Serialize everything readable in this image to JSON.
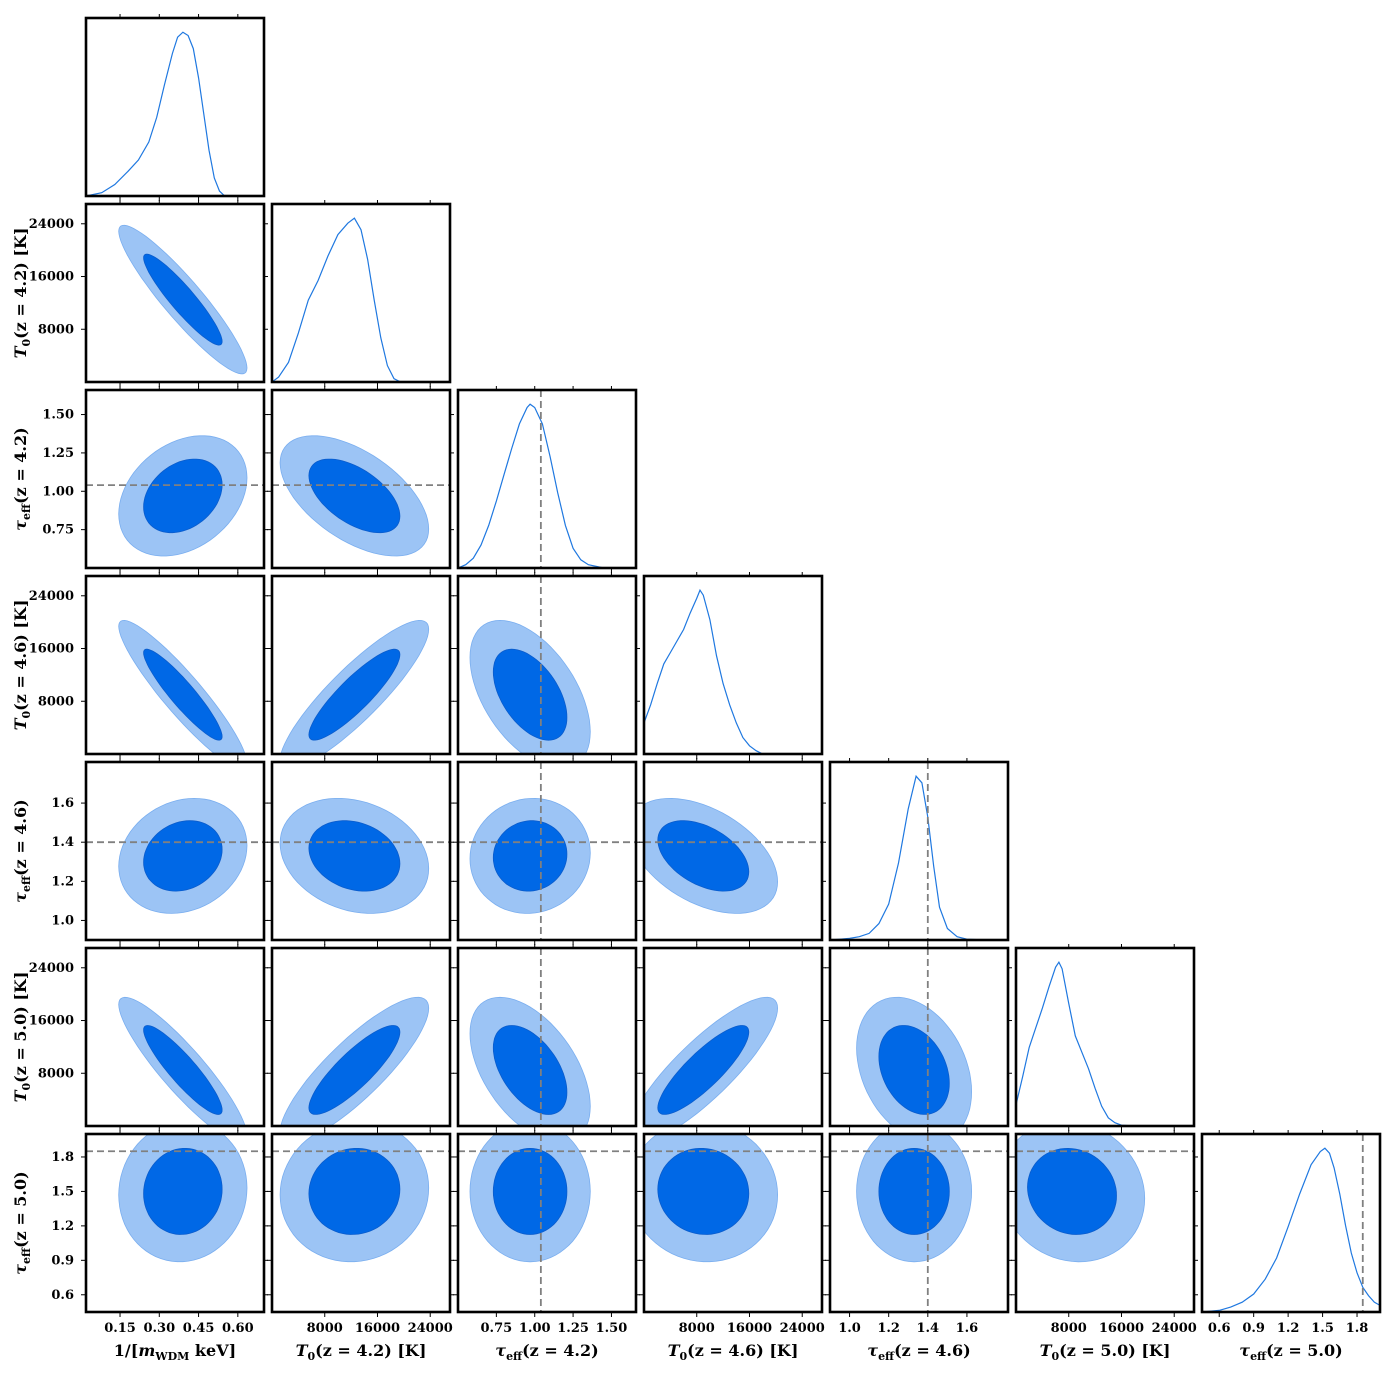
{
  "colors": {
    "inner": "#0068e6",
    "outer": "#9cc4f5",
    "line": "#1f78e0",
    "reference": "#808080"
  },
  "chart_data": {
    "type": "corner",
    "grid": false,
    "parameters": [
      {
        "label": "1/[m_WDM keV]",
        "label_parts": {
          "pre": "1/[",
          "sym": "m",
          "sub": "WDM",
          "post": " keV]"
        },
        "range": [
          0.02,
          0.7
        ],
        "ticks": [
          0.15,
          0.3,
          0.45,
          0.6
        ],
        "tick_labels": [
          "0.15",
          "0.30",
          "0.45",
          "0.60"
        ],
        "mean": 0.39,
        "sd": 0.1,
        "true_value": null,
        "pdf": [
          [
            0.02,
            0
          ],
          [
            0.08,
            0.02
          ],
          [
            0.13,
            0.07
          ],
          [
            0.18,
            0.15
          ],
          [
            0.22,
            0.22
          ],
          [
            0.26,
            0.33
          ],
          [
            0.29,
            0.48
          ],
          [
            0.32,
            0.68
          ],
          [
            0.35,
            0.87
          ],
          [
            0.37,
            0.97
          ],
          [
            0.39,
            1.0
          ],
          [
            0.41,
            0.98
          ],
          [
            0.43,
            0.9
          ],
          [
            0.45,
            0.72
          ],
          [
            0.47,
            0.5
          ],
          [
            0.49,
            0.28
          ],
          [
            0.51,
            0.11
          ],
          [
            0.53,
            0.03
          ],
          [
            0.55,
            0.0
          ],
          [
            0.7,
            0
          ]
        ]
      },
      {
        "label": "T0(z = 4.2) [K]",
        "label_parts": {
          "pre": "",
          "sym": "T",
          "sub": "0",
          "post": "(z = 4.2) [K]"
        },
        "range": [
          0,
          27000
        ],
        "ticks": [
          8000,
          16000,
          24000
        ],
        "tick_labels": [
          "8000",
          "16000",
          "24000"
        ],
        "mean": 12500,
        "sd": 4600,
        "true_value": null,
        "pdf": [
          [
            0,
            0
          ],
          [
            1000,
            0.03
          ],
          [
            2500,
            0.12
          ],
          [
            4000,
            0.3
          ],
          [
            5500,
            0.5
          ],
          [
            7000,
            0.62
          ],
          [
            8500,
            0.77
          ],
          [
            10000,
            0.9
          ],
          [
            11500,
            0.97
          ],
          [
            12500,
            1.0
          ],
          [
            13500,
            0.93
          ],
          [
            14500,
            0.75
          ],
          [
            15500,
            0.5
          ],
          [
            16500,
            0.27
          ],
          [
            17500,
            0.1
          ],
          [
            18500,
            0.02
          ],
          [
            19500,
            0
          ],
          [
            27000,
            0
          ]
        ]
      },
      {
        "label": "τ_eff(z = 4.2)",
        "label_parts": {
          "pre": "",
          "sym": "τ",
          "sub": "eff",
          "post": "(z = 4.2)"
        },
        "range": [
          0.5,
          1.66
        ],
        "ticks": [
          0.75,
          1.0,
          1.25,
          1.5
        ],
        "tick_labels": [
          "0.75",
          "1.00",
          "1.25",
          "1.50"
        ],
        "mean": 0.97,
        "sd": 0.16,
        "true_value": 1.04,
        "pdf": [
          [
            0.5,
            0
          ],
          [
            0.55,
            0.02
          ],
          [
            0.6,
            0.06
          ],
          [
            0.65,
            0.14
          ],
          [
            0.7,
            0.26
          ],
          [
            0.75,
            0.41
          ],
          [
            0.8,
            0.57
          ],
          [
            0.85,
            0.73
          ],
          [
            0.9,
            0.88
          ],
          [
            0.95,
            0.98
          ],
          [
            0.97,
            1.0
          ],
          [
            1.0,
            0.98
          ],
          [
            1.05,
            0.88
          ],
          [
            1.1,
            0.68
          ],
          [
            1.15,
            0.46
          ],
          [
            1.2,
            0.26
          ],
          [
            1.25,
            0.12
          ],
          [
            1.3,
            0.05
          ],
          [
            1.35,
            0.02
          ],
          [
            1.45,
            0
          ],
          [
            1.66,
            0
          ]
        ]
      },
      {
        "label": "T0(z = 4.6) [K]",
        "label_parts": {
          "pre": "",
          "sym": "T",
          "sub": "0",
          "post": "(z = 4.6) [K]"
        },
        "range": [
          0,
          27000
        ],
        "ticks": [
          8000,
          16000,
          24000
        ],
        "tick_labels": [
          "8000",
          "16000",
          "24000"
        ],
        "mean": 9000,
        "sd": 4600,
        "true_value": null,
        "pdf": [
          [
            0,
            0.19
          ],
          [
            1000,
            0.3
          ],
          [
            2000,
            0.43
          ],
          [
            3000,
            0.55
          ],
          [
            4000,
            0.62
          ],
          [
            5000,
            0.69
          ],
          [
            6000,
            0.76
          ],
          [
            7000,
            0.86
          ],
          [
            8000,
            0.95
          ],
          [
            8500,
            1.0
          ],
          [
            9000,
            0.97
          ],
          [
            10000,
            0.82
          ],
          [
            11000,
            0.6
          ],
          [
            12000,
            0.43
          ],
          [
            13000,
            0.3
          ],
          [
            14000,
            0.19
          ],
          [
            15000,
            0.1
          ],
          [
            16000,
            0.05
          ],
          [
            17000,
            0.02
          ],
          [
            18000,
            0
          ],
          [
            27000,
            0
          ]
        ]
      },
      {
        "label": "τ_eff(z = 4.6)",
        "label_parts": {
          "pre": "",
          "sym": "τ",
          "sub": "eff",
          "post": "(z = 4.6)"
        },
        "range": [
          0.9,
          1.81
        ],
        "ticks": [
          1.0,
          1.2,
          1.4,
          1.6
        ],
        "tick_labels": [
          "1.0",
          "1.2",
          "1.4",
          "1.6"
        ],
        "mean": 1.33,
        "sd": 0.12,
        "true_value": 1.4,
        "pdf": [
          [
            0.9,
            0
          ],
          [
            0.95,
            0.005
          ],
          [
            1.0,
            0.01
          ],
          [
            1.05,
            0.02
          ],
          [
            1.1,
            0.04
          ],
          [
            1.15,
            0.1
          ],
          [
            1.2,
            0.22
          ],
          [
            1.25,
            0.47
          ],
          [
            1.3,
            0.8
          ],
          [
            1.34,
            1.0
          ],
          [
            1.37,
            0.96
          ],
          [
            1.4,
            0.75
          ],
          [
            1.43,
            0.45
          ],
          [
            1.46,
            0.2
          ],
          [
            1.5,
            0.07
          ],
          [
            1.55,
            0.02
          ],
          [
            1.6,
            0.005
          ],
          [
            1.7,
            0
          ],
          [
            1.81,
            0
          ]
        ]
      },
      {
        "label": "T0(z = 5.0) [K]",
        "label_parts": {
          "pre": "",
          "sym": "T",
          "sub": "0",
          "post": "(z = 5.0) [K]"
        },
        "range": [
          0,
          27000
        ],
        "ticks": [
          8000,
          16000,
          24000
        ],
        "tick_labels": [
          "8000",
          "16000",
          "24000"
        ],
        "mean": 8500,
        "sd": 4500,
        "true_value": null,
        "pdf": [
          [
            0,
            0.13
          ],
          [
            1000,
            0.3
          ],
          [
            2000,
            0.48
          ],
          [
            3000,
            0.6
          ],
          [
            4000,
            0.72
          ],
          [
            5000,
            0.85
          ],
          [
            6000,
            0.97
          ],
          [
            6500,
            1.0
          ],
          [
            7000,
            0.96
          ],
          [
            8000,
            0.75
          ],
          [
            9000,
            0.55
          ],
          [
            10000,
            0.45
          ],
          [
            11000,
            0.35
          ],
          [
            12000,
            0.23
          ],
          [
            13000,
            0.12
          ],
          [
            14000,
            0.05
          ],
          [
            15000,
            0.02
          ],
          [
            16000,
            0.005
          ],
          [
            18000,
            0
          ],
          [
            27000,
            0
          ]
        ]
      },
      {
        "label": "τ_eff(z = 5.0)",
        "label_parts": {
          "pre": "",
          "sym": "τ",
          "sub": "eff",
          "post": "(z = 5.0)"
        },
        "range": [
          0.45,
          2.0
        ],
        "ticks": [
          0.6,
          0.9,
          1.2,
          1.5,
          1.8
        ],
        "tick_labels": [
          "0.6",
          "0.9",
          "1.2",
          "1.5",
          "1.8"
        ],
        "mean": 1.5,
        "sd": 0.25,
        "true_value": 1.85,
        "pdf": [
          [
            0.45,
            0
          ],
          [
            0.6,
            0.01
          ],
          [
            0.7,
            0.03
          ],
          [
            0.8,
            0.06
          ],
          [
            0.9,
            0.11
          ],
          [
            1.0,
            0.2
          ],
          [
            1.1,
            0.33
          ],
          [
            1.2,
            0.52
          ],
          [
            1.3,
            0.72
          ],
          [
            1.4,
            0.9
          ],
          [
            1.48,
            0.98
          ],
          [
            1.52,
            1.0
          ],
          [
            1.56,
            0.97
          ],
          [
            1.6,
            0.88
          ],
          [
            1.65,
            0.72
          ],
          [
            1.7,
            0.53
          ],
          [
            1.75,
            0.36
          ],
          [
            1.8,
            0.24
          ],
          [
            1.85,
            0.15
          ],
          [
            1.9,
            0.1
          ],
          [
            1.95,
            0.06
          ],
          [
            2.0,
            0.04
          ]
        ]
      }
    ],
    "correlations": [
      [
        1.0,
        -0.92,
        0.3,
        -0.92,
        0.18,
        -0.9,
        0.05
      ],
      [
        -0.92,
        1.0,
        -0.55,
        0.88,
        -0.22,
        0.85,
        0.05
      ],
      [
        0.3,
        -0.55,
        1.0,
        -0.5,
        0.05,
        -0.5,
        0.0
      ],
      [
        -0.92,
        0.88,
        -0.5,
        1.0,
        -0.45,
        0.85,
        -0.05
      ],
      [
        0.18,
        -0.22,
        0.05,
        -0.45,
        1.0,
        -0.3,
        0.0
      ],
      [
        -0.9,
        0.85,
        -0.5,
        0.85,
        -0.3,
        1.0,
        -0.1
      ],
      [
        0.05,
        0.05,
        0.0,
        -0.05,
        0.0,
        -0.1,
        1.0
      ]
    ],
    "contour_levels": [
      "68%",
      "95%"
    ],
    "true_value_lines": "dashed grey"
  }
}
